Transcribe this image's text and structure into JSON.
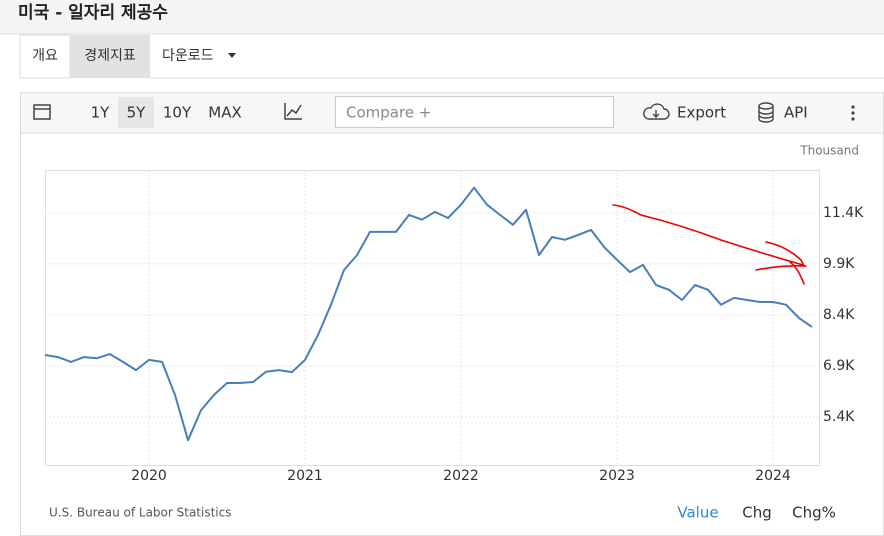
{
  "header": {
    "title": "미국 - 일자리 제공수"
  },
  "tabs": [
    "개요",
    "경제지표",
    "다운로드"
  ],
  "toolbar": {
    "ranges": [
      "1Y",
      "5Y",
      "10Y",
      "MAX"
    ],
    "compare": "Compare +",
    "export": "Export",
    "api": "API"
  },
  "chart_data": {
    "type": "line",
    "unit": "Thousand",
    "categories": [
      null,
      null,
      null,
      null,
      null,
      null,
      null,
      null,
      "2020",
      null,
      null,
      null,
      null,
      null,
      null,
      null,
      null,
      null,
      null,
      null,
      "2021",
      null,
      null,
      null,
      null,
      null,
      null,
      null,
      null,
      null,
      null,
      null,
      "2022",
      null,
      null,
      null,
      null,
      null,
      null,
      null,
      null,
      null,
      null,
      null,
      "2023",
      null,
      null,
      null,
      null,
      null,
      null,
      null,
      null,
      null,
      null,
      null,
      "2024",
      null,
      null,
      null
    ],
    "series": [
      {
        "color": "#4a7ebb",
        "values": [
          7224,
          7160,
          7020,
          7160,
          7130,
          7250,
          7020,
          6780,
          7080,
          7020,
          6050,
          4720,
          5600,
          6050,
          6400,
          6400,
          6430,
          6730,
          6780,
          6720,
          7080,
          7810,
          8700,
          9720,
          10160,
          10840,
          10840,
          10840,
          11340,
          11200,
          11430,
          11250,
          11640,
          12140,
          11640,
          11340,
          11050,
          11490,
          10160,
          10690,
          10610,
          10750,
          10900,
          10400,
          10020,
          9660,
          9870,
          9280,
          9140,
          8840,
          9280,
          9140,
          8700,
          8900,
          8840,
          8780,
          8780,
          8700,
          8310,
          8050
        ]
      }
    ],
    "ylim": [
      3990,
      12660
    ],
    "yticks": [
      {
        "value": 5400,
        "label": "5.4K"
      },
      {
        "value": 6900,
        "label": "6.9K"
      },
      {
        "value": 8400,
        "label": "8.4K"
      },
      {
        "value": 9900,
        "label": "9.9K"
      },
      {
        "value": 11400,
        "label": "11.4K"
      }
    ],
    "grid": true,
    "source": "U.S. Bureau of Labor Statistics"
  },
  "footer": {
    "views": [
      "Value",
      "Chg",
      "Chg%"
    ]
  }
}
